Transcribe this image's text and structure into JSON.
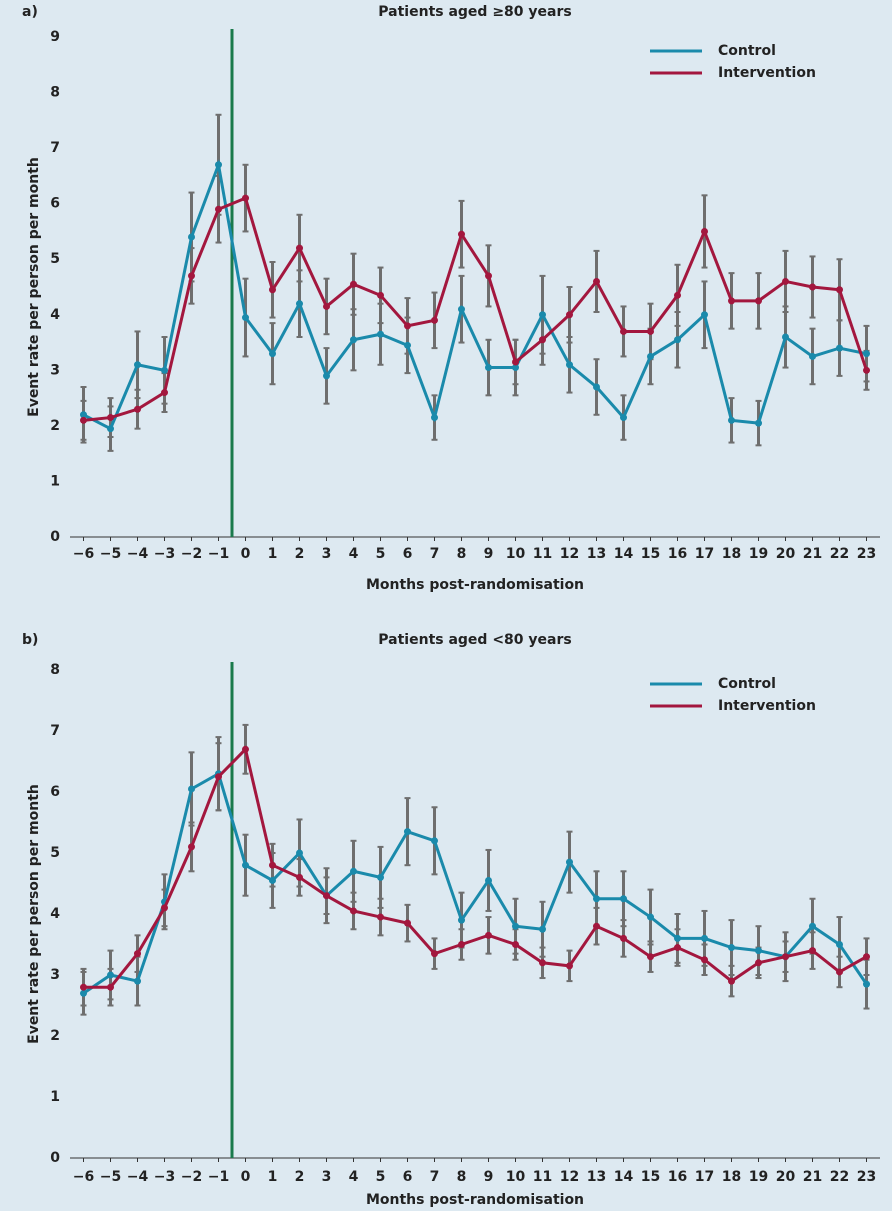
{
  "chart_data": [
    {
      "type": "line",
      "panel_label": "a)",
      "title": "Patients aged ≥80 years",
      "xlabel": "Months post-randomisation",
      "ylabel": "Event rate per person per month",
      "x": [
        -6,
        -5,
        -4,
        -3,
        -2,
        -1,
        0,
        1,
        2,
        3,
        4,
        5,
        6,
        7,
        8,
        9,
        10,
        11,
        12,
        13,
        14,
        15,
        16,
        17,
        18,
        19,
        20,
        21,
        22,
        23
      ],
      "xlim": [
        -6.5,
        23.5
      ],
      "xticks": [
        {
          "value": -6,
          "label": "−6"
        },
        {
          "value": -5,
          "label": "−5"
        },
        {
          "value": -4,
          "label": "−4"
        },
        {
          "value": -3,
          "label": "−3"
        },
        {
          "value": -2,
          "label": "−2"
        },
        {
          "value": -1,
          "label": "−1"
        },
        0,
        1,
        2,
        3,
        4,
        5,
        6,
        7,
        8,
        9,
        10,
        11,
        12,
        13,
        14,
        15,
        16,
        17,
        18,
        19,
        20,
        21,
        22,
        23
      ],
      "ylim": [
        0,
        9
      ],
      "yticks": [
        0,
        1,
        2,
        3,
        4,
        5,
        6,
        7,
        8,
        9
      ],
      "vline": -0.5,
      "vline_color": "#1a7a4c",
      "legend": "upper right",
      "grid": false,
      "series": [
        {
          "name": "Control",
          "color": "#1a8aab",
          "values": [
            2.2,
            1.95,
            3.1,
            3.0,
            5.4,
            6.7,
            3.95,
            3.3,
            4.2,
            2.9,
            3.55,
            3.65,
            3.45,
            2.15,
            4.1,
            3.05,
            3.05,
            4.0,
            3.1,
            2.7,
            2.15,
            3.25,
            3.55,
            4.0,
            2.1,
            2.05,
            3.6,
            3.25,
            3.4,
            3.3
          ],
          "errors": [
            0.5,
            0.4,
            0.6,
            0.6,
            0.8,
            0.9,
            0.7,
            0.55,
            0.6,
            0.5,
            0.55,
            0.55,
            0.5,
            0.4,
            0.6,
            0.5,
            0.5,
            0.7,
            0.5,
            0.5,
            0.4,
            0.5,
            0.5,
            0.6,
            0.4,
            0.4,
            0.55,
            0.5,
            0.5,
            0.5
          ]
        },
        {
          "name": "Intervention",
          "color": "#a3173e",
          "values": [
            2.1,
            2.15,
            2.3,
            2.6,
            4.7,
            5.9,
            6.1,
            4.45,
            5.2,
            4.15,
            4.55,
            4.35,
            3.8,
            3.9,
            5.45,
            4.7,
            3.15,
            3.55,
            4.0,
            4.6,
            3.7,
            3.7,
            4.35,
            5.5,
            4.25,
            4.25,
            4.6,
            4.5,
            4.45,
            3.0
          ],
          "errors": [
            0.35,
            0.35,
            0.35,
            0.35,
            0.5,
            0.6,
            0.6,
            0.5,
            0.6,
            0.5,
            0.55,
            0.5,
            0.5,
            0.5,
            0.6,
            0.55,
            0.4,
            0.45,
            0.5,
            0.55,
            0.45,
            0.5,
            0.55,
            0.65,
            0.5,
            0.5,
            0.55,
            0.55,
            0.55,
            0.35
          ]
        }
      ]
    },
    {
      "type": "line",
      "panel_label": "b)",
      "title": "Patients aged <80 years",
      "xlabel": "Months post-randomisation",
      "ylabel": "Event rate per person per month",
      "x": [
        -6,
        -5,
        -4,
        -3,
        -2,
        -1,
        0,
        1,
        2,
        3,
        4,
        5,
        6,
        7,
        8,
        9,
        10,
        11,
        12,
        13,
        14,
        15,
        16,
        17,
        18,
        19,
        20,
        21,
        22,
        23
      ],
      "xlim": [
        -6.5,
        23.5
      ],
      "xticks": [
        {
          "value": -6,
          "label": "−6"
        },
        {
          "value": -5,
          "label": "−5"
        },
        {
          "value": -4,
          "label": "−4"
        },
        {
          "value": -3,
          "label": "−3"
        },
        {
          "value": -2,
          "label": "−2"
        },
        {
          "value": -1,
          "label": "−1"
        },
        0,
        1,
        2,
        3,
        4,
        5,
        6,
        7,
        8,
        9,
        10,
        11,
        12,
        13,
        14,
        15,
        16,
        17,
        18,
        19,
        20,
        21,
        22,
        23
      ],
      "ylim": [
        0,
        8
      ],
      "yticks": [
        0,
        1,
        2,
        3,
        4,
        5,
        6,
        7,
        8
      ],
      "vline": -0.5,
      "vline_color": "#1a7a4c",
      "legend": "upper right",
      "grid": false,
      "series": [
        {
          "name": "Control",
          "color": "#1a8aab",
          "values": [
            2.7,
            3.0,
            2.9,
            4.2,
            6.05,
            6.3,
            4.8,
            4.55,
            5.0,
            4.3,
            4.7,
            4.6,
            5.35,
            5.2,
            3.9,
            4.55,
            3.8,
            3.75,
            4.85,
            4.25,
            4.25,
            3.95,
            3.6,
            3.6,
            3.45,
            3.4,
            3.3,
            3.8,
            3.5,
            2.85
          ],
          "errors": [
            0.35,
            0.4,
            0.4,
            0.45,
            0.6,
            0.6,
            0.5,
            0.45,
            0.55,
            0.45,
            0.5,
            0.5,
            0.55,
            0.55,
            0.45,
            0.5,
            0.45,
            0.45,
            0.5,
            0.45,
            0.45,
            0.45,
            0.4,
            0.45,
            0.45,
            0.4,
            0.4,
            0.45,
            0.45,
            0.4
          ]
        },
        {
          "name": "Intervention",
          "color": "#a3173e",
          "values": [
            2.8,
            2.8,
            3.35,
            4.1,
            5.1,
            6.25,
            6.7,
            4.8,
            4.6,
            4.3,
            4.05,
            3.95,
            3.85,
            3.35,
            3.5,
            3.65,
            3.5,
            3.2,
            3.15,
            3.8,
            3.6,
            3.3,
            3.45,
            3.25,
            2.9,
            3.2,
            3.3,
            3.4,
            3.05,
            3.3
          ],
          "errors": [
            0.3,
            0.3,
            0.3,
            0.3,
            0.4,
            0.55,
            0.4,
            0.35,
            0.3,
            0.3,
            0.3,
            0.3,
            0.3,
            0.25,
            0.25,
            0.3,
            0.25,
            0.25,
            0.25,
            0.3,
            0.3,
            0.25,
            0.3,
            0.25,
            0.25,
            0.25,
            0.25,
            0.3,
            0.25,
            0.3
          ]
        }
      ]
    }
  ]
}
